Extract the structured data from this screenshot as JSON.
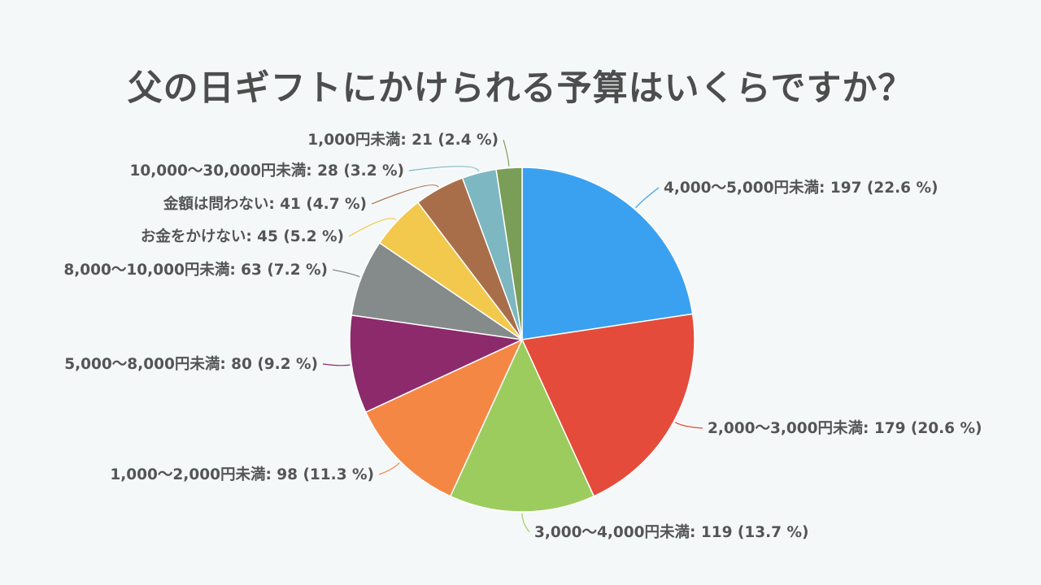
{
  "chart_data": {
    "type": "pie",
    "title": "父の日ギフトにかけられる予算はいくらですか？",
    "slices": [
      {
        "label": "4,000〜5,000円未満",
        "value": 197,
        "percent": "22.6 %",
        "color": "#3aa0f0"
      },
      {
        "label": "2,000〜3,000円未満",
        "value": 179,
        "percent": "20.6 %",
        "color": "#e44b3b"
      },
      {
        "label": "3,000〜4,000円未満",
        "value": 119,
        "percent": "13.7 %",
        "color": "#9ccc5e"
      },
      {
        "label": "1,000〜2,000円未満",
        "value": 98,
        "percent": "11.3 %",
        "color": "#f58745"
      },
      {
        "label": "5,000〜8,000円未満",
        "value": 80,
        "percent": "9.2 %",
        "color": "#8c2a6c"
      },
      {
        "label": "8,000〜10,000円未満",
        "value": 63,
        "percent": "7.2 %",
        "color": "#858b8b"
      },
      {
        "label": "お金をかけない",
        "value": 45,
        "percent": "5.2 %",
        "color": "#f2c94c"
      },
      {
        "label": "金額は問わない",
        "value": 41,
        "percent": "4.7 %",
        "color": "#a86e4a"
      },
      {
        "label": "10,000〜30,000円未満",
        "value": 28,
        "percent": "3.2 %",
        "color": "#7db7c2"
      },
      {
        "label": "1,000円未満",
        "value": 21,
        "percent": "2.4 %",
        "color": "#7a9d57"
      }
    ]
  }
}
